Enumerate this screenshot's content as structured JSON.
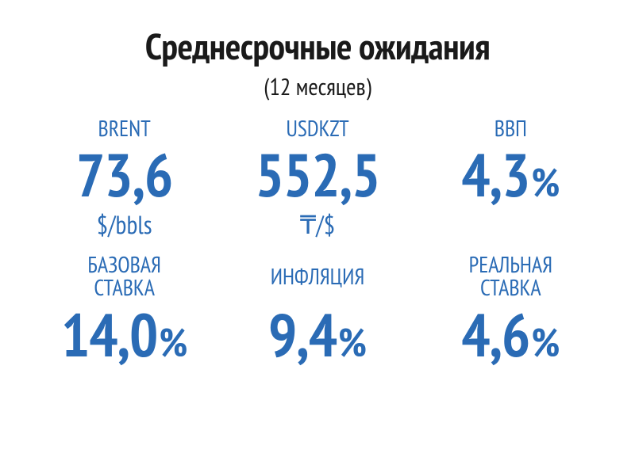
{
  "header": {
    "title": "Среднесрочные ожидания",
    "subtitle": "(12 месяцев)"
  },
  "colors": {
    "accent": "#2a6bb5",
    "text_dark": "#1a1a1a",
    "background": "#ffffff"
  },
  "typography": {
    "title_fontsize": 46,
    "subtitle_fontsize": 30,
    "label_fontsize": 28,
    "value_fontsize": 76,
    "pct_fontsize": 50,
    "unit_fontsize": 32,
    "font_family": "PT Sans Narrow / Arial Narrow"
  },
  "metrics": {
    "brent": {
      "label": "BRENT",
      "value": "73,6",
      "unit": "$/bbls"
    },
    "usdkzt": {
      "label": "USDKZT",
      "value": "552,5",
      "unit": "₸/$"
    },
    "gdp": {
      "label": "ВВП",
      "value": "4,3",
      "pct": "%"
    },
    "base_rate": {
      "label": "БАЗОВАЯ\nСТАВКА",
      "value": "14,0",
      "pct": "%"
    },
    "inflation": {
      "label": "ИНФЛЯЦИЯ",
      "value": "9,4",
      "pct": "%"
    },
    "real_rate": {
      "label": "РЕАЛЬНАЯ\nСТАВКА",
      "value": "4,6",
      "pct": "%"
    }
  }
}
